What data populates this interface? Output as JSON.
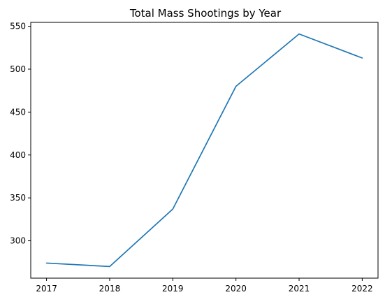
{
  "chart_data": {
    "type": "line",
    "title": "Total Mass Shootings by Year",
    "xlabel": "",
    "ylabel": "",
    "x": [
      2017,
      2018,
      2019,
      2020,
      2021,
      2022
    ],
    "series": [
      {
        "values": [
          274,
          270,
          337,
          480,
          541,
          513
        ],
        "color": "#1f77b4"
      }
    ],
    "xticks": [
      "2017",
      "2018",
      "2019",
      "2020",
      "2021",
      "2022"
    ],
    "yticks": [
      300,
      350,
      400,
      450,
      500,
      550
    ],
    "xlim": [
      2016.75,
      2022.25
    ],
    "ylim": [
      256.45,
      554.55
    ],
    "grid": false,
    "legend": "none"
  }
}
